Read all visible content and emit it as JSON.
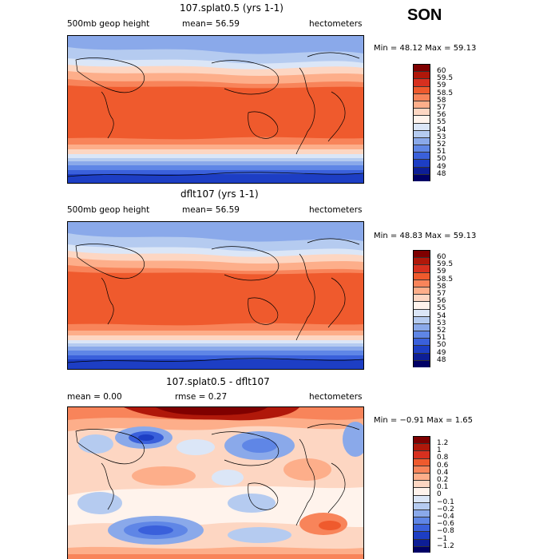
{
  "season": "SON",
  "panels": [
    {
      "title": "107.splat0.5 (yrs 1-1)",
      "left_meta": "500mb geop height",
      "center_meta": "mean=  56.59",
      "units": "hectometers",
      "minmax": "Min =  48.12 Max =  59.13",
      "type": "field",
      "colorbar_labels": [
        "60",
        "59.5",
        "59",
        "58.5",
        "58",
        "57",
        "56",
        "55",
        "54",
        "53",
        "52",
        "51",
        "50",
        "49",
        "48"
      ]
    },
    {
      "title": "dflt107 (yrs 1-1)",
      "left_meta": "500mb geop height",
      "center_meta": "mean=  56.59",
      "units": "hectometers",
      "minmax": "Min =  48.83 Max =  59.13",
      "type": "field",
      "colorbar_labels": [
        "60",
        "59.5",
        "59",
        "58.5",
        "58",
        "57",
        "56",
        "55",
        "54",
        "53",
        "52",
        "51",
        "50",
        "49",
        "48"
      ]
    },
    {
      "title": "107.splat0.5 - dflt107",
      "left_meta": "mean =   0.00",
      "center_meta": "rmse =   0.27",
      "units": "hectometers",
      "minmax": "Min = −0.91 Max =   1.65",
      "type": "diff",
      "colorbar_labels": [
        "1.2",
        "1",
        "0.8",
        "0.6",
        "0.4",
        "0.2",
        "0.1",
        "0",
        "−0.1",
        "−0.2",
        "−0.4",
        "−0.6",
        "−0.8",
        "−1",
        "−1.2"
      ]
    }
  ],
  "colors": {
    "scale": [
      "#7f0000",
      "#b0180a",
      "#d7301f",
      "#ef5a2d",
      "#f8845a",
      "#fdae8a",
      "#fdd6c2",
      "#fff3ec",
      "#dbe6f7",
      "#b5cbf0",
      "#8aa9ea",
      "#5f86e6",
      "#3a60db",
      "#1d3ec4",
      "#0d1e96",
      "#000066"
    ]
  }
}
